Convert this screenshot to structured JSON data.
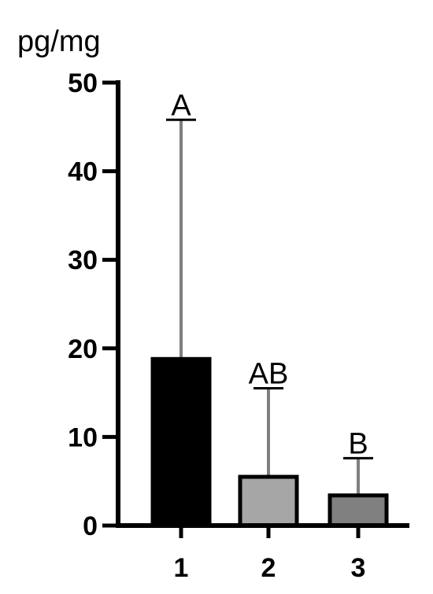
{
  "chart_data": {
    "type": "bar",
    "ylabel": "pg/mg",
    "xlabel": "",
    "title": "",
    "ylim": [
      0,
      50
    ],
    "yticks": [
      0,
      10,
      20,
      30,
      40,
      50
    ],
    "categories": [
      "1",
      "2",
      "3"
    ],
    "values": [
      18.8,
      5.5,
      3.4
    ],
    "error_upper": [
      45.8,
      15.5,
      7.6
    ],
    "significance_labels": [
      "A",
      "AB",
      "B"
    ],
    "bar_colors": [
      "#000000",
      "#a6a6a6",
      "#808080"
    ],
    "error_color": "#7f7f7f",
    "grid": false,
    "legend": "none"
  }
}
